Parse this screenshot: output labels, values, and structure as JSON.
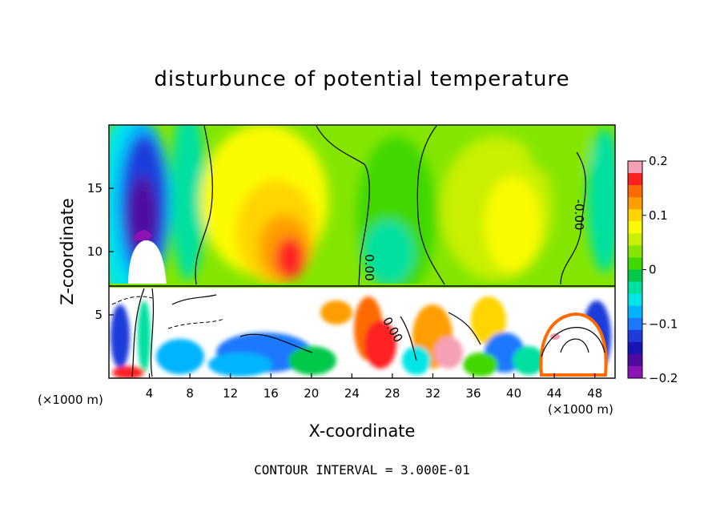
{
  "chart_data": {
    "type": "heatmap",
    "title": "disturbunce of potential temperature",
    "xlabel": "X-coordinate",
    "ylabel": "Z-coordinate",
    "x_unit": "(×1000 m)",
    "y_unit": "(×1000 m)",
    "xlim": [
      0,
      50
    ],
    "ylim": [
      0,
      20
    ],
    "x_ticks": [
      4,
      8,
      12,
      16,
      20,
      24,
      28,
      32,
      36,
      40,
      44,
      48
    ],
    "y_ticks": [
      5,
      10,
      15
    ],
    "colorbar": {
      "range": [
        -0.2,
        0.2
      ],
      "tick_values": [
        0.2,
        0.1,
        0,
        -0.1,
        -0.2
      ],
      "tick_labels": [
        "0.2",
        "0.1",
        "0",
        "−0.1",
        "−0.2"
      ],
      "colors": [
        "#f5a0b4",
        "#ff2020",
        "#ff6a00",
        "#ff9e00",
        "#ffd400",
        "#fbfb00",
        "#c8f000",
        "#84e600",
        "#40d800",
        "#00c84a",
        "#00e0a0",
        "#00e6e6",
        "#00b4ff",
        "#1e78ff",
        "#1e3cdc",
        "#1a14b4",
        "#500aa0",
        "#8c14b4"
      ]
    },
    "contour_labels": [
      "0.00",
      "0.00",
      "-0.00"
    ],
    "contour_interval": "CONTOUR INTERVAL = 3.000E-01"
  }
}
